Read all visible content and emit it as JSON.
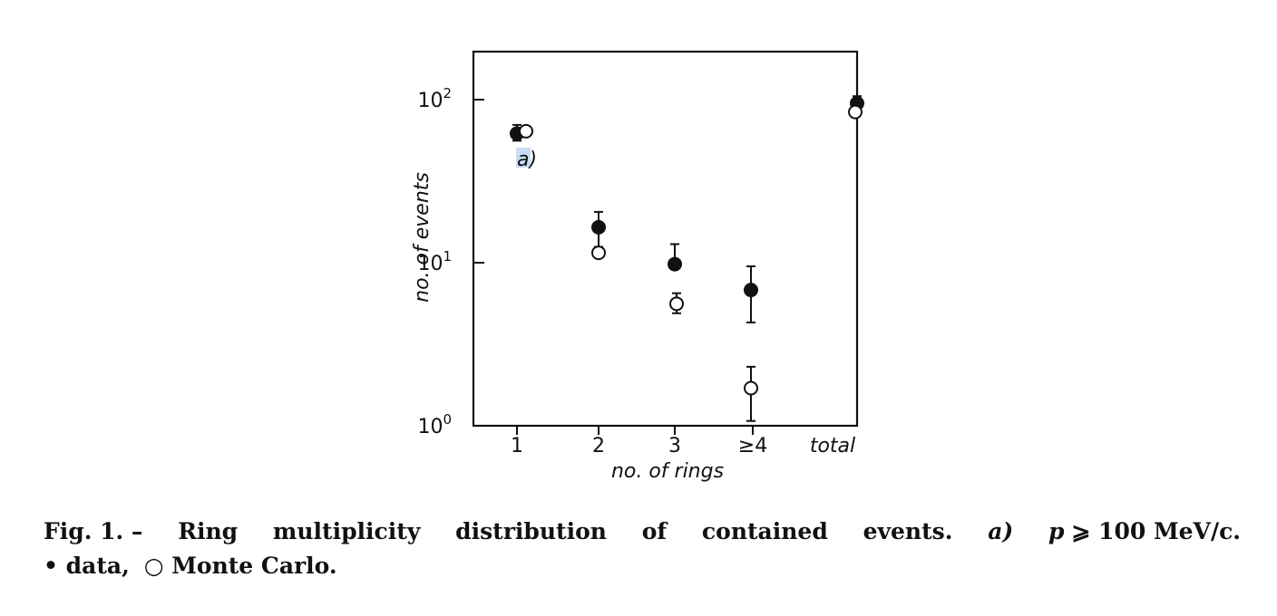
{
  "chart_data": {
    "type": "scatter",
    "categories": [
      "1",
      "2",
      "3",
      "≥4",
      "total"
    ],
    "xlabel": "no. of rings",
    "ylabel": "no. of events",
    "yscale": "log",
    "ylim": [
      1,
      200
    ],
    "yticks": [
      {
        "label": "10",
        "exp": "0",
        "value": 1
      },
      {
        "label": "10",
        "exp": "1",
        "value": 10
      },
      {
        "label": "10",
        "exp": "2",
        "value": 100
      }
    ],
    "grid": false,
    "series": [
      {
        "name": "data",
        "marker": "filled-circle",
        "points": [
          {
            "category": "1",
            "y": 62,
            "err_low": 56,
            "err_high": 70
          },
          {
            "category": "2",
            "y": 16.5,
            "err_low": 12.5,
            "err_high": 20.5
          },
          {
            "category": "3",
            "y": 9.8,
            "err_low": null,
            "err_high": 13
          },
          {
            "category": "≥4",
            "y": 6.8,
            "err_low": 4.3,
            "err_high": 9.5
          },
          {
            "category": "total",
            "y": 95,
            "err_low": null,
            "err_high": 105
          }
        ]
      },
      {
        "name": "Monte Carlo",
        "marker": "open-circle",
        "points": [
          {
            "category": "1",
            "y": 64,
            "err_low": null,
            "err_high": null
          },
          {
            "category": "2",
            "y": 11.5,
            "err_low": null,
            "err_high": null
          },
          {
            "category": "3",
            "y": 5.6,
            "err_low": 4.9,
            "err_high": 6.5
          },
          {
            "category": "≥4",
            "y": 1.7,
            "err_low": 1.07,
            "err_high": 2.3
          },
          {
            "category": "total",
            "y": 84,
            "err_low": null,
            "err_high": null
          }
        ]
      }
    ],
    "annotations": [
      {
        "text": "a)",
        "category": "1"
      }
    ]
  },
  "caption": {
    "line1": [
      "Fig. 1. –",
      "Ring",
      "multiplicity",
      "distribution",
      "of",
      "contained",
      "events."
    ],
    "a_label": "a)",
    "p_label": "p",
    "p_value": "⩾ 100 MeV/c.",
    "line2_data": "• data,",
    "line2_mc": "○ Monte Carlo."
  }
}
